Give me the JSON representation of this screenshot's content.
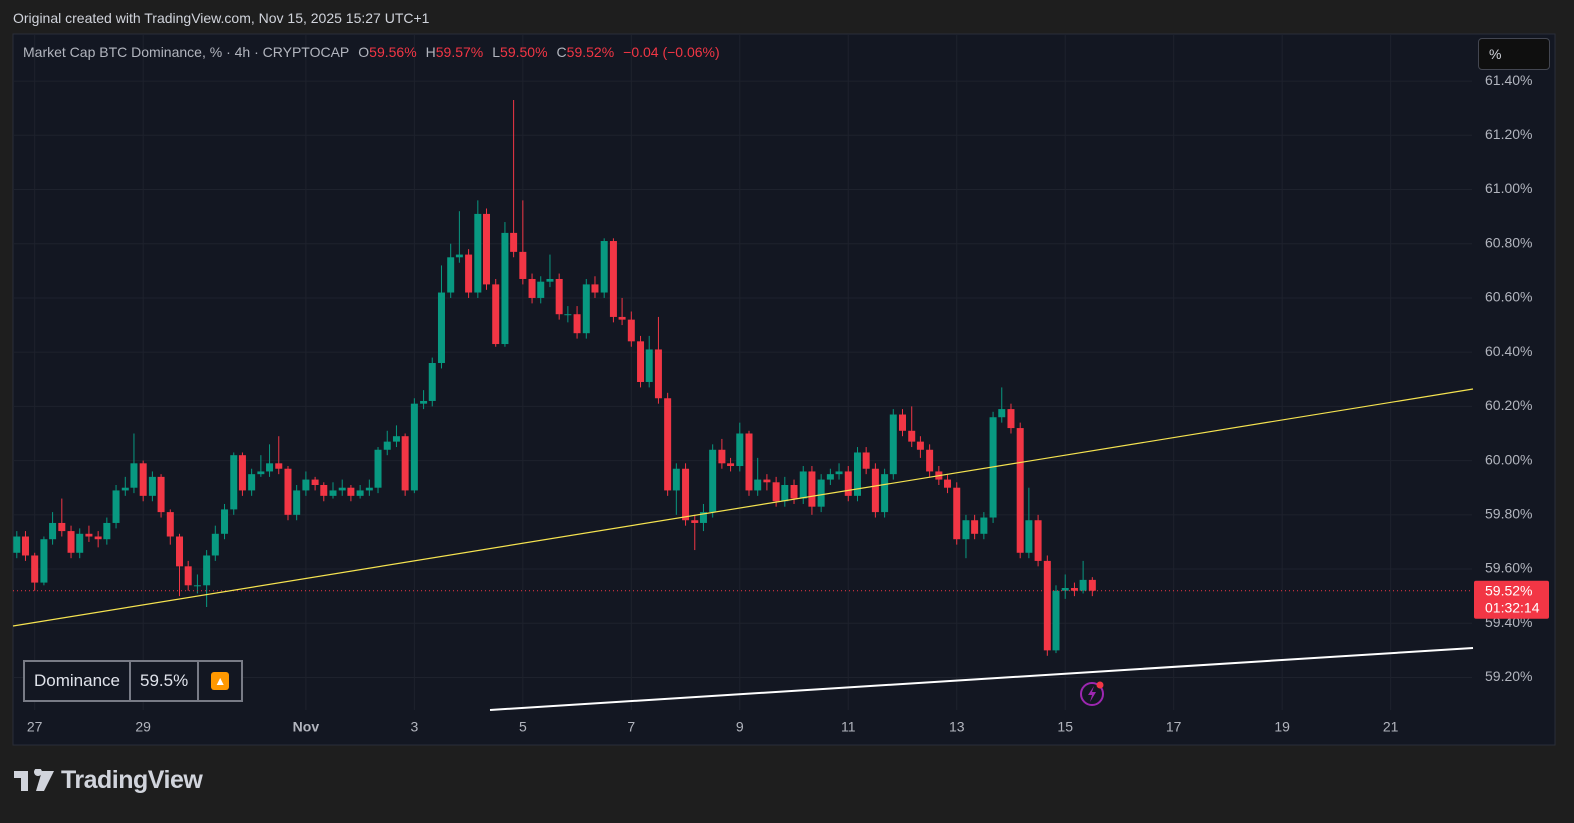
{
  "header": "Original created with TradingView.com, Nov 15, 2025 15:27 UTC+1",
  "chart_data": {
    "type": "candlestick",
    "title": "Market Cap BTC Dominance, % · 4h · CRYPTOCAP",
    "ohlc_legend": [
      {
        "key": "O",
        "value": "59.56%"
      },
      {
        "key": "H",
        "value": "59.57%"
      },
      {
        "key": "L",
        "value": "59.50%"
      },
      {
        "key": "C",
        "value": "59.52%"
      }
    ],
    "change": "−0.04 (−0.06%)",
    "up_color": "#089981",
    "down_color": "#f23645",
    "x": [
      -0.33,
      -0.17,
      0,
      0.17,
      0.33,
      0.5,
      0.67,
      0.83,
      1,
      1.17,
      1.33,
      1.5,
      1.67,
      1.83,
      2,
      2.17,
      2.33,
      2.5,
      2.67,
      2.83,
      3,
      3.17,
      3.33,
      3.5,
      3.67,
      3.83,
      4,
      4.17,
      4.33,
      4.5,
      4.67,
      4.83,
      5,
      5.17,
      5.33,
      5.5,
      5.67,
      5.83,
      6,
      6.17,
      6.33,
      6.5,
      6.67,
      6.83,
      7,
      7.17,
      7.33,
      7.5,
      7.67,
      7.83,
      8,
      8.17,
      8.33,
      8.5,
      8.67,
      8.83,
      9,
      9.17,
      9.33,
      9.5,
      9.67,
      9.83,
      10,
      10.17,
      10.33,
      10.5,
      10.67,
      10.83,
      11,
      11.17,
      11.33,
      11.5,
      11.67,
      11.83,
      12,
      12.17,
      12.33,
      12.5,
      12.67,
      12.83,
      13,
      13.17,
      13.33,
      13.5,
      13.67,
      13.83,
      14,
      14.17,
      14.33,
      14.5,
      14.67,
      14.83,
      15,
      15.17,
      15.33,
      15.5,
      15.67,
      15.83,
      16,
      16.17,
      16.33,
      16.5,
      16.67,
      16.83,
      17,
      17.17,
      17.33,
      17.5,
      17.67,
      17.83,
      18,
      18.17,
      18.33,
      18.5,
      18.67,
      18.83,
      19,
      19.17,
      19.33,
      19.5
    ],
    "open": [
      59.66,
      59.72,
      59.65,
      59.55,
      59.71,
      59.77,
      59.74,
      59.66,
      59.73,
      59.72,
      59.71,
      59.77,
      59.89,
      59.9,
      59.99,
      59.87,
      59.94,
      59.81,
      59.72,
      59.61,
      59.54,
      59.54,
      59.65,
      59.73,
      59.82,
      60.02,
      59.89,
      59.95,
      59.96,
      59.99,
      59.97,
      59.8,
      59.89,
      59.93,
      59.91,
      59.87,
      59.89,
      59.9,
      59.87,
      59.89,
      59.9,
      60.04,
      60.07,
      60.09,
      59.89,
      60.21,
      60.22,
      60.36,
      60.62,
      60.75,
      60.76,
      60.62,
      60.91,
      60.65,
      60.43,
      60.84,
      60.77,
      60.67,
      60.6,
      60.66,
      60.67,
      60.54,
      60.54,
      60.47,
      60.65,
      60.62,
      60.81,
      60.53,
      60.52,
      60.44,
      60.29,
      60.41,
      60.23,
      59.89,
      59.97,
      59.78,
      59.77,
      59.81,
      60.04,
      59.99,
      59.98,
      60.1,
      59.89,
      59.93,
      59.92,
      59.85,
      59.91,
      59.86,
      59.96,
      59.83,
      59.93,
      59.95,
      59.96,
      59.87,
      60.03,
      59.97,
      59.81,
      59.95,
      60.17,
      60.11,
      60.07,
      60.04,
      59.96,
      59.93,
      59.9,
      59.71,
      59.78,
      59.73,
      59.79,
      60.16,
      60.19,
      60.12,
      59.66,
      59.78,
      59.63,
      59.3,
      59.52,
      59.53,
      59.52,
      59.56
    ],
    "high": [
      59.74,
      59.74,
      59.66,
      59.72,
      59.81,
      59.86,
      59.76,
      59.75,
      59.76,
      59.74,
      59.79,
      59.91,
      59.94,
      60.1,
      60.0,
      59.96,
      59.95,
      59.82,
      59.73,
      59.63,
      59.58,
      59.67,
      59.76,
      59.84,
      60.03,
      60.03,
      59.97,
      60.02,
      60.06,
      60.09,
      59.98,
      59.91,
      59.96,
      59.94,
      59.92,
      59.92,
      59.93,
      59.91,
      59.91,
      59.93,
      60.05,
      60.11,
      60.13,
      60.1,
      60.23,
      60.26,
      60.38,
      60.72,
      60.8,
      60.92,
      60.78,
      60.96,
      60.93,
      60.67,
      60.88,
      61.33,
      60.96,
      60.69,
      60.68,
      60.76,
      60.69,
      60.57,
      60.57,
      60.67,
      60.68,
      60.82,
      60.82,
      60.6,
      60.55,
      60.46,
      60.46,
      60.53,
      60.25,
      59.99,
      59.99,
      59.8,
      59.84,
      60.06,
      60.08,
      60.01,
      60.14,
      60.11,
      60.01,
      59.95,
      59.94,
      59.94,
      59.93,
      59.98,
      59.98,
      59.95,
      59.97,
      59.99,
      59.98,
      60.05,
      60.05,
      59.99,
      59.97,
      60.19,
      60.19,
      60.2,
      60.09,
      60.06,
      59.98,
      59.95,
      59.92,
      59.8,
      59.8,
      59.81,
      60.18,
      60.27,
      60.21,
      60.14,
      59.9,
      59.8,
      59.65,
      59.54,
      59.58,
      59.55,
      59.63,
      59.57
    ],
    "low": [
      59.64,
      59.63,
      59.52,
      59.54,
      59.69,
      59.72,
      59.64,
      59.64,
      59.7,
      59.68,
      59.69,
      59.75,
      59.87,
      59.88,
      59.85,
      59.85,
      59.79,
      59.69,
      59.5,
      59.52,
      59.51,
      59.46,
      59.63,
      59.71,
      59.8,
      59.87,
      59.87,
      59.94,
      59.94,
      59.95,
      59.78,
      59.78,
      59.87,
      59.89,
      59.85,
      59.86,
      59.87,
      59.85,
      59.86,
      59.87,
      59.88,
      60.02,
      60.05,
      59.87,
      59.88,
      60.19,
      60.2,
      60.34,
      60.6,
      60.73,
      60.6,
      60.6,
      60.63,
      60.42,
      60.42,
      60.75,
      60.65,
      60.58,
      60.58,
      60.64,
      60.52,
      60.51,
      60.45,
      60.45,
      60.6,
      60.6,
      60.51,
      60.5,
      60.42,
      60.27,
      60.27,
      60.21,
      59.87,
      59.8,
      59.76,
      59.67,
      59.74,
      59.79,
      59.97,
      59.96,
      59.96,
      59.87,
      59.87,
      59.89,
      59.83,
      59.83,
      59.84,
      59.84,
      59.8,
      59.81,
      59.91,
      59.93,
      59.85,
      59.85,
      59.95,
      59.79,
      59.79,
      59.93,
      60.09,
      60.05,
      60.01,
      59.94,
      59.91,
      59.88,
      59.69,
      59.64,
      59.71,
      59.71,
      59.77,
      60.14,
      60.1,
      59.64,
      59.64,
      59.61,
      59.28,
      59.29,
      59.49,
      59.5,
      59.51,
      59.5
    ],
    "close": [
      59.72,
      59.65,
      59.55,
      59.71,
      59.77,
      59.74,
      59.66,
      59.73,
      59.72,
      59.71,
      59.77,
      59.89,
      59.9,
      59.99,
      59.87,
      59.94,
      59.81,
      59.72,
      59.61,
      59.54,
      59.54,
      59.65,
      59.73,
      59.82,
      60.02,
      59.89,
      59.95,
      59.96,
      59.99,
      59.97,
      59.8,
      59.89,
      59.93,
      59.91,
      59.87,
      59.89,
      59.9,
      59.87,
      59.89,
      59.9,
      60.04,
      60.07,
      60.09,
      59.89,
      60.21,
      60.22,
      60.36,
      60.62,
      60.75,
      60.76,
      60.62,
      60.91,
      60.65,
      60.43,
      60.84,
      60.77,
      60.67,
      60.6,
      60.66,
      60.67,
      60.54,
      60.54,
      60.47,
      60.65,
      60.62,
      60.81,
      60.53,
      60.52,
      60.44,
      60.29,
      60.41,
      60.23,
      59.89,
      59.97,
      59.78,
      59.77,
      59.81,
      60.04,
      59.99,
      59.98,
      60.1,
      59.89,
      59.93,
      59.92,
      59.85,
      59.91,
      59.86,
      59.96,
      59.83,
      59.93,
      59.95,
      59.96,
      59.87,
      60.03,
      59.97,
      59.81,
      59.95,
      60.17,
      60.11,
      60.07,
      60.04,
      59.96,
      59.93,
      59.9,
      59.71,
      59.78,
      59.73,
      59.79,
      60.16,
      60.19,
      60.12,
      59.66,
      59.78,
      59.63,
      59.3,
      59.52,
      59.53,
      59.52,
      59.56,
      59.52
    ],
    "xlim": [
      -0.4,
      26.5
    ],
    "xticks": [
      {
        "value": 0,
        "label": "27"
      },
      {
        "value": 2,
        "label": "29"
      },
      {
        "value": 5,
        "label": "Nov"
      },
      {
        "value": 7,
        "label": "3"
      },
      {
        "value": 9,
        "label": "5"
      },
      {
        "value": 11,
        "label": "7"
      },
      {
        "value": 13,
        "label": "9"
      },
      {
        "value": 15,
        "label": "11"
      },
      {
        "value": 17,
        "label": "13"
      },
      {
        "value": 19,
        "label": "15"
      },
      {
        "value": 21,
        "label": "17"
      },
      {
        "value": 23,
        "label": "19"
      },
      {
        "value": 25,
        "label": "21"
      }
    ],
    "ylim": [
      59.08,
      61.57
    ],
    "yticks": [
      {
        "value": 59.2,
        "label": "59.20%"
      },
      {
        "value": 59.4,
        "label": "59.40%"
      },
      {
        "value": 59.6,
        "label": "59.60%"
      },
      {
        "value": 59.8,
        "label": "59.80%"
      },
      {
        "value": 60,
        "label": "60.00%"
      },
      {
        "value": 60.2,
        "label": "60.20%"
      },
      {
        "value": 60.4,
        "label": "60.40%"
      },
      {
        "value": 60.6,
        "label": "60.60%"
      },
      {
        "value": 60.8,
        "label": "60.80%"
      },
      {
        "value": 61,
        "label": "61.00%"
      },
      {
        "value": 61.2,
        "label": "61.20%"
      },
      {
        "value": 61.4,
        "label": "61.40%"
      }
    ],
    "grid": true,
    "last_price_label": "59.52%",
    "countdown": "01:32:14",
    "scale_button": "%"
  },
  "widget": {
    "label": "Dominance",
    "value": "59.5%"
  },
  "brand": "TradingView"
}
